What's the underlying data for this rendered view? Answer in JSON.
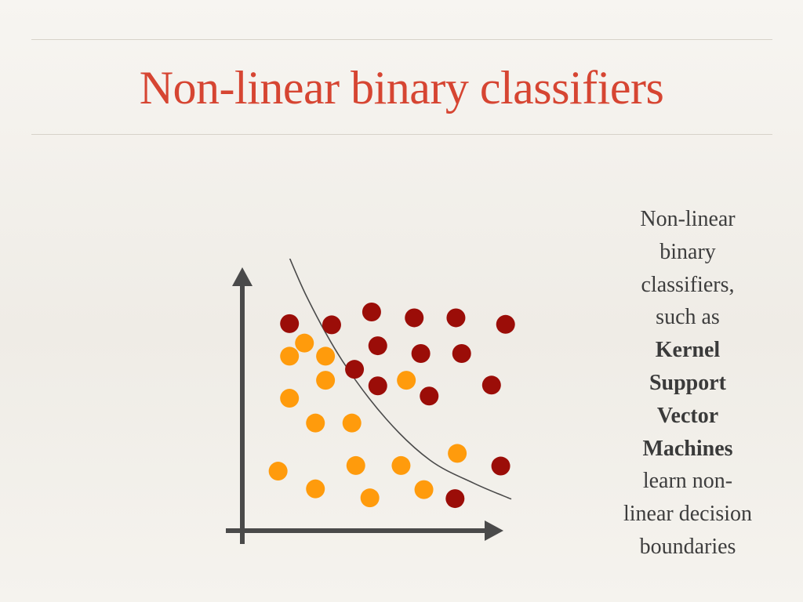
{
  "slide": {
    "title": "Non-linear binary classifiers",
    "caption": {
      "lines": [
        {
          "text": "Non-linear",
          "bold": false
        },
        {
          "text": "binary",
          "bold": false
        },
        {
          "text": "classifiers,",
          "bold": false
        },
        {
          "text": "such as",
          "bold": false
        },
        {
          "text": "Kernel",
          "bold": true
        },
        {
          "text": "Support",
          "bold": true
        },
        {
          "text": "Vector",
          "bold": true
        },
        {
          "text": "Machines",
          "bold": true
        },
        {
          "text": "learn non-",
          "bold": false
        },
        {
          "text": "linear decision",
          "bold": false
        },
        {
          "text": "boundaries",
          "bold": false
        }
      ]
    }
  },
  "diagram": {
    "colors": {
      "class_a": "#9b0d08",
      "class_b": "#ff9b0c",
      "axes": "#4a4a4a",
      "boundary": "#4a4a4a",
      "title": "#d64532",
      "text": "#3d3d3d"
    },
    "points": [
      {
        "cls": "class_a",
        "x": 0.2,
        "y": 8.52
      },
      {
        "cls": "class_a",
        "x": 1.16,
        "y": 8.47
      },
      {
        "cls": "class_a",
        "x": 2.07,
        "y": 9.0
      },
      {
        "cls": "class_a",
        "x": 3.04,
        "y": 8.76
      },
      {
        "cls": "class_a",
        "x": 3.99,
        "y": 8.76
      },
      {
        "cls": "class_a",
        "x": 5.12,
        "y": 8.49
      },
      {
        "cls": "class_a",
        "x": 2.21,
        "y": 7.61
      },
      {
        "cls": "class_a",
        "x": 3.19,
        "y": 7.29
      },
      {
        "cls": "class_a",
        "x": 4.12,
        "y": 7.29
      },
      {
        "cls": "class_a",
        "x": 1.68,
        "y": 6.64
      },
      {
        "cls": "class_a",
        "x": 2.21,
        "y": 5.96
      },
      {
        "cls": "class_a",
        "x": 3.38,
        "y": 5.54
      },
      {
        "cls": "class_a",
        "x": 4.8,
        "y": 5.99
      },
      {
        "cls": "class_a",
        "x": 5.01,
        "y": 2.66
      },
      {
        "cls": "class_a",
        "x": 3.97,
        "y": 1.32
      },
      {
        "cls": "class_b",
        "x": 0.54,
        "y": 7.72
      },
      {
        "cls": "class_b",
        "x": 0.2,
        "y": 7.18
      },
      {
        "cls": "class_b",
        "x": 1.02,
        "y": 7.18
      },
      {
        "cls": "class_b",
        "x": 1.02,
        "y": 6.19
      },
      {
        "cls": "class_b",
        "x": 2.86,
        "y": 6.19
      },
      {
        "cls": "class_b",
        "x": 0.2,
        "y": 5.45
      },
      {
        "cls": "class_b",
        "x": 0.79,
        "y": 4.43
      },
      {
        "cls": "class_b",
        "x": 1.62,
        "y": 4.43
      },
      {
        "cls": "class_b",
        "x": 4.02,
        "y": 3.18
      },
      {
        "cls": "class_b",
        "x": -0.06,
        "y": 2.45
      },
      {
        "cls": "class_b",
        "x": 1.71,
        "y": 2.68
      },
      {
        "cls": "class_b",
        "x": 2.74,
        "y": 2.68
      },
      {
        "cls": "class_b",
        "x": 0.79,
        "y": 1.72
      },
      {
        "cls": "class_b",
        "x": 2.03,
        "y": 1.35
      },
      {
        "cls": "class_b",
        "x": 3.26,
        "y": 1.69
      }
    ],
    "boundary": [
      [
        0.0,
        12.1
      ],
      [
        0.6,
        9.6
      ],
      [
        1.4,
        7.0
      ],
      [
        2.4,
        4.6
      ],
      [
        3.4,
        2.9
      ],
      [
        4.4,
        1.95
      ],
      [
        5.25,
        1.3
      ]
    ]
  }
}
